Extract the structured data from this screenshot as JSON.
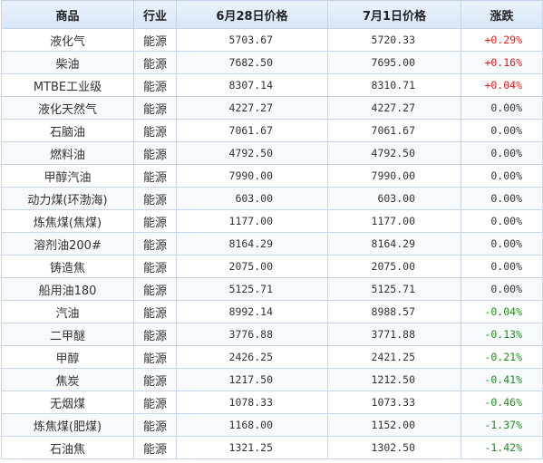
{
  "table": {
    "headers": [
      "商品",
      "行业",
      "6月28日价格",
      "7月1日价格",
      "涨跌"
    ],
    "rows": [
      {
        "name": "液化气",
        "industry": "能源",
        "prev": "5703.67",
        "curr": "5720.33",
        "change": "+0.29%",
        "dir": "up"
      },
      {
        "name": "柴油",
        "industry": "能源",
        "prev": "7682.50",
        "curr": "7695.00",
        "change": "+0.16%",
        "dir": "up"
      },
      {
        "name": "MTBE工业级",
        "industry": "能源",
        "prev": "8307.14",
        "curr": "8310.71",
        "change": "+0.04%",
        "dir": "up"
      },
      {
        "name": "液化天然气",
        "industry": "能源",
        "prev": "4227.27",
        "curr": "4227.27",
        "change": "0.00%",
        "dir": "flat"
      },
      {
        "name": "石脑油",
        "industry": "能源",
        "prev": "7061.67",
        "curr": "7061.67",
        "change": "0.00%",
        "dir": "flat"
      },
      {
        "name": "燃料油",
        "industry": "能源",
        "prev": "4792.50",
        "curr": "4792.50",
        "change": "0.00%",
        "dir": "flat"
      },
      {
        "name": "甲醇汽油",
        "industry": "能源",
        "prev": "7990.00",
        "curr": "7990.00",
        "change": "0.00%",
        "dir": "flat"
      },
      {
        "name": "动力煤(环渤海)",
        "industry": "能源",
        "prev": "603.00",
        "curr": "603.00",
        "change": "0.00%",
        "dir": "flat"
      },
      {
        "name": "炼焦煤(焦煤)",
        "industry": "能源",
        "prev": "1177.00",
        "curr": "1177.00",
        "change": "0.00%",
        "dir": "flat"
      },
      {
        "name": "溶剂油200#",
        "industry": "能源",
        "prev": "8164.29",
        "curr": "8164.29",
        "change": "0.00%",
        "dir": "flat"
      },
      {
        "name": "铸造焦",
        "industry": "能源",
        "prev": "2075.00",
        "curr": "2075.00",
        "change": "0.00%",
        "dir": "flat"
      },
      {
        "name": "船用油180",
        "industry": "能源",
        "prev": "5125.71",
        "curr": "5125.71",
        "change": "0.00%",
        "dir": "flat"
      },
      {
        "name": "汽油",
        "industry": "能源",
        "prev": "8992.14",
        "curr": "8988.57",
        "change": "-0.04%",
        "dir": "down"
      },
      {
        "name": "二甲醚",
        "industry": "能源",
        "prev": "3776.88",
        "curr": "3771.88",
        "change": "-0.13%",
        "dir": "down"
      },
      {
        "name": "甲醇",
        "industry": "能源",
        "prev": "2426.25",
        "curr": "2421.25",
        "change": "-0.21%",
        "dir": "down"
      },
      {
        "name": "焦炭",
        "industry": "能源",
        "prev": "1217.50",
        "curr": "1212.50",
        "change": "-0.41%",
        "dir": "down"
      },
      {
        "name": "无烟煤",
        "industry": "能源",
        "prev": "1078.33",
        "curr": "1073.33",
        "change": "-0.46%",
        "dir": "down"
      },
      {
        "name": "炼焦煤(肥煤)",
        "industry": "能源",
        "prev": "1168.00",
        "curr": "1152.00",
        "change": "-1.37%",
        "dir": "down"
      },
      {
        "name": "石油焦",
        "industry": "能源",
        "prev": "1321.25",
        "curr": "1302.50",
        "change": "-1.42%",
        "dir": "down"
      }
    ]
  },
  "colors": {
    "up": "#e4181a",
    "down": "#1c8c1c",
    "header_bg": "#d7e6f6",
    "border": "#c6d6e8"
  }
}
